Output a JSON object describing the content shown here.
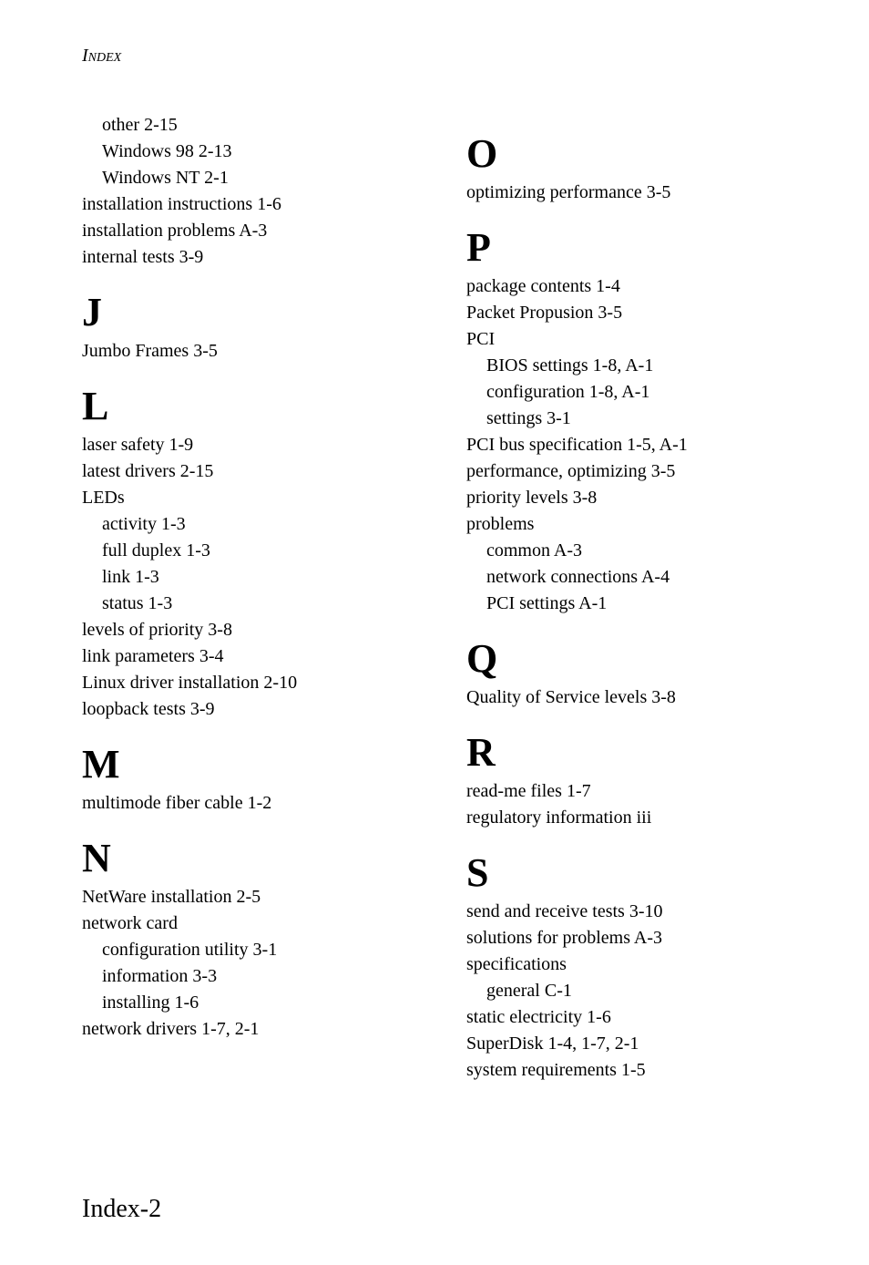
{
  "header": "Index",
  "footer": "Index-2",
  "left": {
    "cont": [
      {
        "t": "other  2-15",
        "s": true
      },
      {
        "t": "Windows 98  2-13",
        "s": true
      },
      {
        "t": "Windows NT  2-1",
        "s": true
      },
      {
        "t": "installation instructions  1-6"
      },
      {
        "t": "installation problems  A-3"
      },
      {
        "t": "internal tests  3-9"
      }
    ],
    "sections": [
      {
        "letter": "J",
        "entries": [
          {
            "t": "Jumbo Frames  3-5"
          }
        ]
      },
      {
        "letter": "L",
        "entries": [
          {
            "t": "laser safety  1-9"
          },
          {
            "t": "latest drivers  2-15"
          },
          {
            "t": "LEDs"
          },
          {
            "t": "activity  1-3",
            "s": true
          },
          {
            "t": "full duplex  1-3",
            "s": true
          },
          {
            "t": "link  1-3",
            "s": true
          },
          {
            "t": "status  1-3",
            "s": true
          },
          {
            "t": "levels of priority  3-8"
          },
          {
            "t": "link parameters  3-4"
          },
          {
            "t": "Linux driver installation  2-10"
          },
          {
            "t": "loopback tests  3-9"
          }
        ]
      },
      {
        "letter": "M",
        "entries": [
          {
            "t": "multimode fiber cable  1-2"
          }
        ]
      },
      {
        "letter": "N",
        "entries": [
          {
            "t": "NetWare installation  2-5"
          },
          {
            "t": "network card"
          },
          {
            "t": "configuration utility  3-1",
            "s": true
          },
          {
            "t": "information  3-3",
            "s": true
          },
          {
            "t": "installing  1-6",
            "s": true
          },
          {
            "t": "network drivers  1-7, 2-1"
          }
        ]
      }
    ]
  },
  "right": {
    "sections": [
      {
        "letter": "O",
        "entries": [
          {
            "t": "optimizing performance  3-5"
          }
        ]
      },
      {
        "letter": "P",
        "entries": [
          {
            "t": "package contents  1-4"
          },
          {
            "t": "Packet Propusion  3-5"
          },
          {
            "t": "PCI"
          },
          {
            "t": "BIOS settings  1-8, A-1",
            "s": true
          },
          {
            "t": "configuration  1-8, A-1",
            "s": true
          },
          {
            "t": "settings  3-1",
            "s": true
          },
          {
            "t": "PCI bus specification  1-5, A-1"
          },
          {
            "t": "performance, optimizing  3-5"
          },
          {
            "t": "priority levels  3-8"
          },
          {
            "t": "problems"
          },
          {
            "t": "common  A-3",
            "s": true
          },
          {
            "t": "network connections  A-4",
            "s": true
          },
          {
            "t": "PCI settings  A-1",
            "s": true
          }
        ]
      },
      {
        "letter": "Q",
        "entries": [
          {
            "t": "Quality of Service levels  3-8"
          }
        ]
      },
      {
        "letter": "R",
        "entries": [
          {
            "t": "read-me files  1-7"
          },
          {
            "t": "regulatory information  iii"
          }
        ]
      },
      {
        "letter": "S",
        "entries": [
          {
            "t": "send and receive tests  3-10"
          },
          {
            "t": "solutions for problems  A-3"
          },
          {
            "t": "specifications"
          },
          {
            "t": "general  C-1",
            "s": true
          },
          {
            "t": "static electricity  1-6"
          },
          {
            "t": "SuperDisk  1-4, 1-7, 2-1"
          },
          {
            "t": "system requirements  1-5"
          }
        ]
      }
    ]
  }
}
